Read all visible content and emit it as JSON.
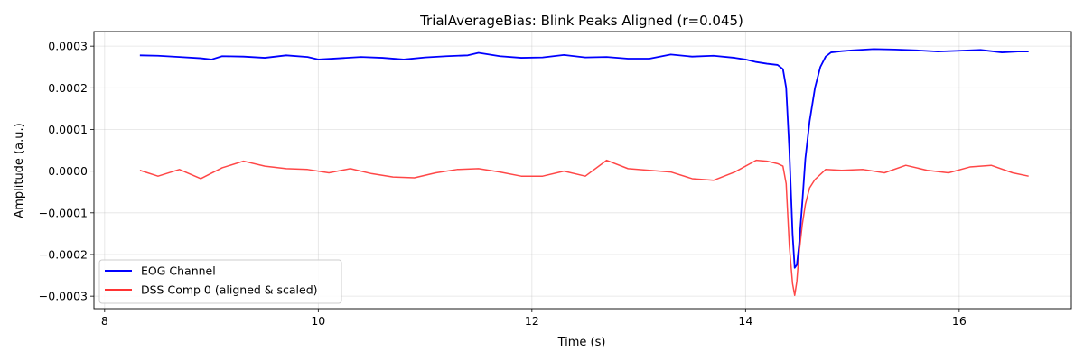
{
  "chart_data": {
    "type": "line",
    "title": "TrialAverageBias: Blink Peaks Aligned (r=0.045)",
    "xlabel": "Time (s)",
    "ylabel": "Amplitude (a.u.)",
    "xlim": [
      7.9,
      17.05
    ],
    "ylim": [
      -0.00033,
      0.000335
    ],
    "xticks": [
      8,
      10,
      12,
      14,
      16
    ],
    "xtick_labels": [
      "8",
      "10",
      "12",
      "14",
      "16"
    ],
    "yticks": [
      -0.0003,
      -0.0002,
      -0.0001,
      0.0,
      0.0001,
      0.0002,
      0.0003
    ],
    "ytick_labels": [
      "−0.0003",
      "−0.0002",
      "−0.0001",
      "0.0000",
      "0.0001",
      "0.0002",
      "0.0003"
    ],
    "grid": true,
    "legend_position": "lower-left",
    "series": [
      {
        "name": "EOG Channel",
        "color": "#0000ff",
        "points": [
          [
            8.33,
            0.000278
          ],
          [
            8.5,
            0.000277
          ],
          [
            8.7,
            0.000274
          ],
          [
            8.9,
            0.000271
          ],
          [
            9.0,
            0.000268
          ],
          [
            9.1,
            0.000276
          ],
          [
            9.3,
            0.000275
          ],
          [
            9.5,
            0.000272
          ],
          [
            9.7,
            0.000278
          ],
          [
            9.9,
            0.000274
          ],
          [
            10.0,
            0.000268
          ],
          [
            10.2,
            0.000271
          ],
          [
            10.4,
            0.000274
          ],
          [
            10.6,
            0.000272
          ],
          [
            10.8,
            0.000268
          ],
          [
            11.0,
            0.000273
          ],
          [
            11.2,
            0.000276
          ],
          [
            11.4,
            0.000278
          ],
          [
            11.5,
            0.000284
          ],
          [
            11.7,
            0.000276
          ],
          [
            11.9,
            0.000272
          ],
          [
            12.1,
            0.000273
          ],
          [
            12.3,
            0.000279
          ],
          [
            12.5,
            0.000273
          ],
          [
            12.7,
            0.000274
          ],
          [
            12.9,
            0.00027
          ],
          [
            13.1,
            0.00027
          ],
          [
            13.3,
            0.00028
          ],
          [
            13.5,
            0.000275
          ],
          [
            13.7,
            0.000277
          ],
          [
            13.9,
            0.000272
          ],
          [
            14.0,
            0.000268
          ],
          [
            14.1,
            0.000262
          ],
          [
            14.2,
            0.000258
          ],
          [
            14.3,
            0.000255
          ],
          [
            14.35,
            0.000245
          ],
          [
            14.38,
            0.0002
          ],
          [
            14.41,
            5e-05
          ],
          [
            14.44,
            -0.00015
          ],
          [
            14.46,
            -0.000232
          ],
          [
            14.48,
            -0.000225
          ],
          [
            14.5,
            -0.00018
          ],
          [
            14.53,
            -8e-05
          ],
          [
            14.56,
            3e-05
          ],
          [
            14.6,
            0.00012
          ],
          [
            14.65,
            0.0002
          ],
          [
            14.7,
            0.00025
          ],
          [
            14.75,
            0.000275
          ],
          [
            14.8,
            0.000285
          ],
          [
            14.9,
            0.000288
          ],
          [
            15.0,
            0.00029
          ],
          [
            15.2,
            0.000293
          ],
          [
            15.4,
            0.000292
          ],
          [
            15.6,
            0.00029
          ],
          [
            15.8,
            0.000287
          ],
          [
            16.0,
            0.000289
          ],
          [
            16.2,
            0.000291
          ],
          [
            16.4,
            0.000285
          ],
          [
            16.55,
            0.000287
          ],
          [
            16.65,
            0.000287
          ]
        ]
      },
      {
        "name": "DSS Comp 0 (aligned & scaled)",
        "color": "#ff3333",
        "points": [
          [
            8.33,
            2e-06
          ],
          [
            8.5,
            -1.2e-05
          ],
          [
            8.7,
            4e-06
          ],
          [
            8.9,
            -1.8e-05
          ],
          [
            9.1,
            8e-06
          ],
          [
            9.3,
            2.4e-05
          ],
          [
            9.5,
            1.2e-05
          ],
          [
            9.7,
            6e-06
          ],
          [
            9.9,
            4e-06
          ],
          [
            10.1,
            -4e-06
          ],
          [
            10.3,
            6e-06
          ],
          [
            10.5,
            -6e-06
          ],
          [
            10.7,
            -1.4e-05
          ],
          [
            10.9,
            -1.6e-05
          ],
          [
            11.1,
            -4e-06
          ],
          [
            11.3,
            4e-06
          ],
          [
            11.5,
            6e-06
          ],
          [
            11.7,
            -2e-06
          ],
          [
            11.9,
            -1.2e-05
          ],
          [
            12.1,
            -1.2e-05
          ],
          [
            12.3,
            0.0
          ],
          [
            12.5,
            -1.2e-05
          ],
          [
            12.7,
            2.6e-05
          ],
          [
            12.9,
            6e-06
          ],
          [
            13.1,
            2e-06
          ],
          [
            13.3,
            -2e-06
          ],
          [
            13.5,
            -1.8e-05
          ],
          [
            13.7,
            -2.2e-05
          ],
          [
            13.9,
            -2e-06
          ],
          [
            14.1,
            2.6e-05
          ],
          [
            14.2,
            2.4e-05
          ],
          [
            14.3,
            1.8e-05
          ],
          [
            14.35,
            1.2e-05
          ],
          [
            14.38,
            -3e-05
          ],
          [
            14.41,
            -0.00018
          ],
          [
            14.44,
            -0.00027
          ],
          [
            14.46,
            -0.000298
          ],
          [
            14.48,
            -0.000265
          ],
          [
            14.5,
            -0.0002
          ],
          [
            14.53,
            -0.00013
          ],
          [
            14.56,
            -8e-05
          ],
          [
            14.6,
            -4e-05
          ],
          [
            14.65,
            -2e-05
          ],
          [
            14.75,
            4e-06
          ],
          [
            14.9,
            2e-06
          ],
          [
            15.1,
            4e-06
          ],
          [
            15.3,
            -4e-06
          ],
          [
            15.5,
            1.4e-05
          ],
          [
            15.7,
            2e-06
          ],
          [
            15.9,
            -4e-06
          ],
          [
            16.1,
            1e-05
          ],
          [
            16.3,
            1.4e-05
          ],
          [
            16.5,
            -4e-06
          ],
          [
            16.65,
            -1.2e-05
          ]
        ]
      }
    ]
  }
}
